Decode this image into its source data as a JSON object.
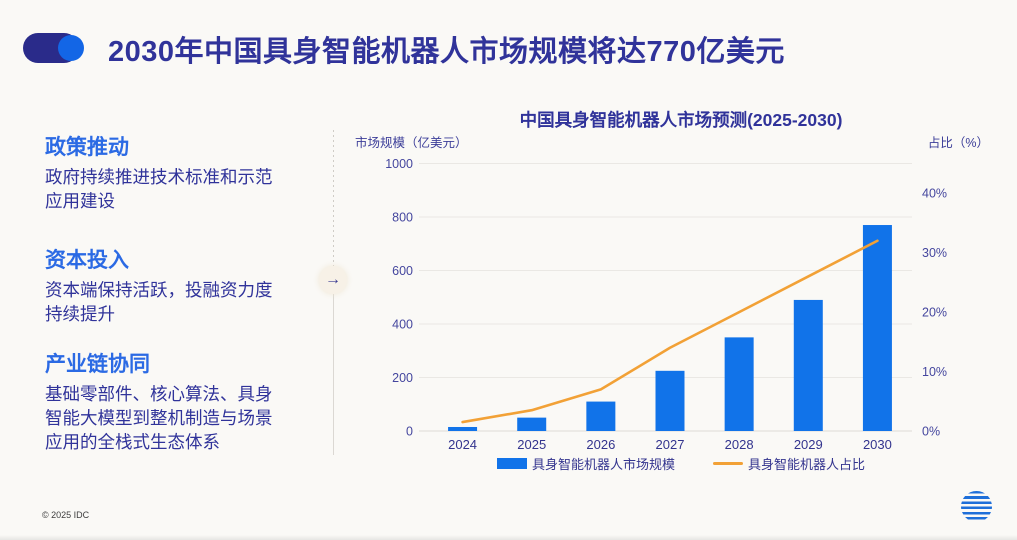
{
  "page": {
    "title": "2030年中国具身智能机器人市场规模将达770亿美元",
    "footer_copyright": "© 2025 IDC"
  },
  "sidebar": {
    "arrow_glyph": "→",
    "sections": [
      {
        "heading": "政策推动",
        "body": "政府持续推进技术标准和示范应用建设"
      },
      {
        "heading": "资本投入",
        "body": "资本端保持活跃，投融资力度持续提升"
      },
      {
        "heading": "产业链协同",
        "body": "基础零部件、核心算法、具身智能大模型到整机制造与场景应用的全栈式生态体系"
      }
    ]
  },
  "chart_data": {
    "type": "bar+line",
    "title": "中国具身智能机器人市场预测(2025-2030)",
    "categories": [
      "2024",
      "2025",
      "2026",
      "2027",
      "2028",
      "2029",
      "2030"
    ],
    "series": [
      {
        "name": "具身智能机器人市场规模",
        "type": "bar",
        "axis": "left",
        "color": "#1173e9",
        "values": [
          15,
          50,
          110,
          225,
          350,
          490,
          770
        ]
      },
      {
        "name": "具身智能机器人占比",
        "type": "line",
        "axis": "right",
        "color": "#f2a136",
        "values": [
          1.5,
          3.5,
          7,
          14,
          20,
          26,
          32
        ]
      }
    ],
    "left_axis": {
      "label": "市场规模（亿美元）",
      "min": 0,
      "max": 1000,
      "ticks": [
        0,
        200,
        400,
        600,
        800,
        1000
      ]
    },
    "right_axis": {
      "label": "占比（%）",
      "min": 0,
      "max": 45,
      "tick_values": [
        0,
        10,
        20,
        30,
        40
      ],
      "ticks": [
        "0%",
        "10%",
        "20%",
        "30%",
        "40%"
      ]
    },
    "grid": true,
    "legend_position": "bottom"
  },
  "colors": {
    "background": "#faf9f6",
    "title_text": "#30339a",
    "heading_blue": "#2b6ae4",
    "bar_blue": "#1173e9",
    "line_orange": "#f2a136",
    "deco_navy": "#2a2b8a",
    "deco_blue": "#1366e6",
    "gridline": "#eae8e4"
  }
}
